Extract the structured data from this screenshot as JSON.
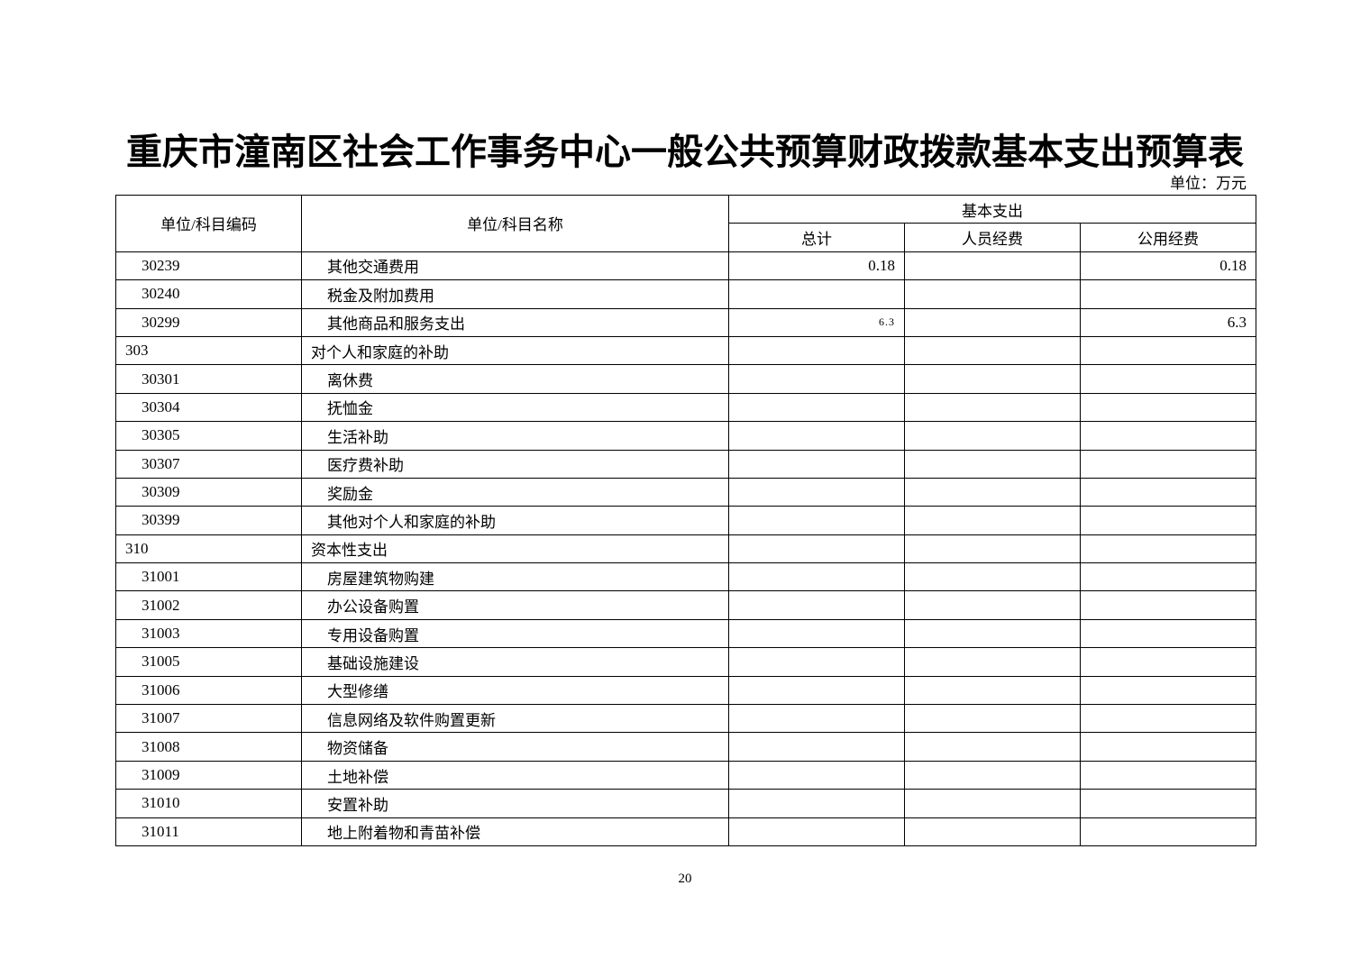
{
  "title": "重庆市潼南区社会工作事务中心一般公共预算财政拨款基本支出预算表",
  "unit": "单位：万元",
  "headers": {
    "code": "单位/科目编码",
    "name": "单位/科目名称",
    "group": "基本支出",
    "total": "总计",
    "personnel": "人员经费",
    "public": "公用经费"
  },
  "rows": [
    {
      "code": "30239",
      "name": "其他交通费用",
      "total": "0.18",
      "personnel": "",
      "public": "0.18",
      "level": 2
    },
    {
      "code": "30240",
      "name": "税金及附加费用",
      "total": "",
      "personnel": "",
      "public": "",
      "level": 2
    },
    {
      "code": "30299",
      "name": "其他商品和服务支出",
      "total": "6.3",
      "personnel": "",
      "public": "6.3",
      "level": 2,
      "total_small": true
    },
    {
      "code": "303",
      "name": "对个人和家庭的补助",
      "total": "",
      "personnel": "",
      "public": "",
      "level": 1
    },
    {
      "code": "30301",
      "name": "离休费",
      "total": "",
      "personnel": "",
      "public": "",
      "level": 2
    },
    {
      "code": "30304",
      "name": "抚恤金",
      "total": "",
      "personnel": "",
      "public": "",
      "level": 2
    },
    {
      "code": "30305",
      "name": "生活补助",
      "total": "",
      "personnel": "",
      "public": "",
      "level": 2
    },
    {
      "code": "30307",
      "name": "医疗费补助",
      "total": "",
      "personnel": "",
      "public": "",
      "level": 2
    },
    {
      "code": "30309",
      "name": "奖励金",
      "total": "",
      "personnel": "",
      "public": "",
      "level": 2
    },
    {
      "code": "30399",
      "name": "其他对个人和家庭的补助",
      "total": "",
      "personnel": "",
      "public": "",
      "level": 2
    },
    {
      "code": "310",
      "name": "资本性支出",
      "total": "",
      "personnel": "",
      "public": "",
      "level": 1
    },
    {
      "code": "31001",
      "name": "房屋建筑物购建",
      "total": "",
      "personnel": "",
      "public": "",
      "level": 2
    },
    {
      "code": "31002",
      "name": "办公设备购置",
      "total": "",
      "personnel": "",
      "public": "",
      "level": 2
    },
    {
      "code": "31003",
      "name": "专用设备购置",
      "total": "",
      "personnel": "",
      "public": "",
      "level": 2
    },
    {
      "code": "31005",
      "name": "基础设施建设",
      "total": "",
      "personnel": "",
      "public": "",
      "level": 2
    },
    {
      "code": "31006",
      "name": "大型修缮",
      "total": "",
      "personnel": "",
      "public": "",
      "level": 2
    },
    {
      "code": "31007",
      "name": "信息网络及软件购置更新",
      "total": "",
      "personnel": "",
      "public": "",
      "level": 2
    },
    {
      "code": "31008",
      "name": "物资储备",
      "total": "",
      "personnel": "",
      "public": "",
      "level": 2
    },
    {
      "code": "31009",
      "name": "土地补偿",
      "total": "",
      "personnel": "",
      "public": "",
      "level": 2
    },
    {
      "code": "31010",
      "name": "安置补助",
      "total": "",
      "personnel": "",
      "public": "",
      "level": 2
    },
    {
      "code": "31011",
      "name": "地上附着物和青苗补偿",
      "total": "",
      "personnel": "",
      "public": "",
      "level": 2
    }
  ],
  "page_number": "20"
}
